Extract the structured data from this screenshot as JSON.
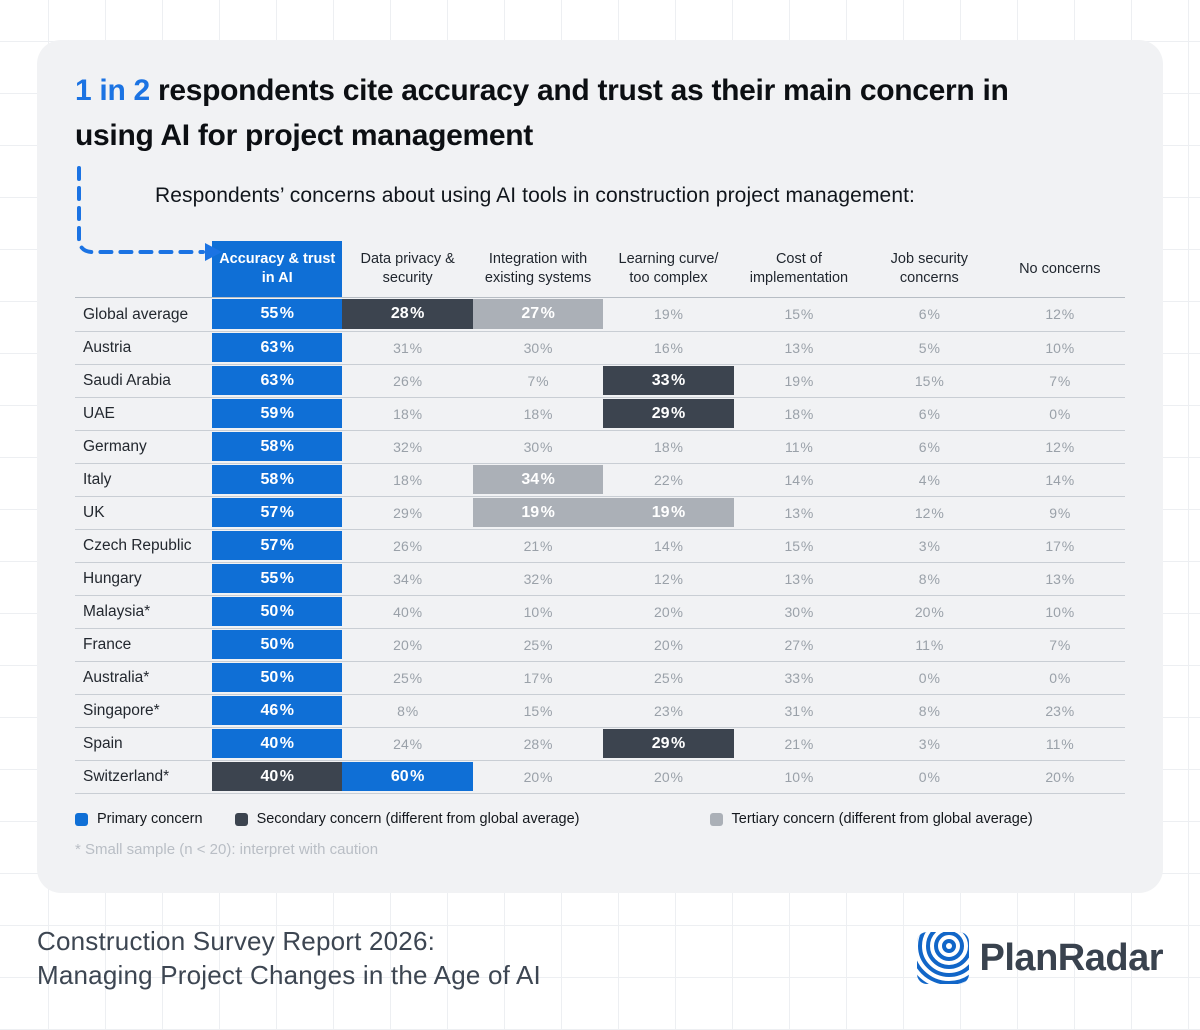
{
  "header": {
    "title_accent": "1 in 2",
    "title_rest": " respondents cite accuracy and trust as their main concern in using AI for project management",
    "subtitle": "Respondents’ concerns about using AI tools in construction project management:"
  },
  "chart_data": {
    "type": "table",
    "unit": "%",
    "columns": [
      "Accuracy & trust in AI",
      "Data privacy & security",
      "Integration with existing systems",
      "Learning curve/ too complex",
      "Cost of implementation",
      "Job security concerns",
      "No concerns"
    ],
    "rows": [
      {
        "label": "Global average",
        "values": [
          55,
          28,
          27,
          19,
          15,
          6,
          12
        ],
        "highlights": {
          "0": "primary",
          "1": "secondary",
          "2": "tertiary"
        }
      },
      {
        "label": "Austria",
        "values": [
          63,
          31,
          30,
          16,
          13,
          5,
          10
        ],
        "highlights": {
          "0": "primary"
        }
      },
      {
        "label": "Saudi Arabia",
        "values": [
          63,
          26,
          7,
          33,
          19,
          15,
          7
        ],
        "highlights": {
          "0": "primary",
          "3": "secondary"
        }
      },
      {
        "label": "UAE",
        "values": [
          59,
          18,
          18,
          29,
          18,
          6,
          0
        ],
        "highlights": {
          "0": "primary",
          "3": "secondary"
        }
      },
      {
        "label": "Germany",
        "values": [
          58,
          32,
          30,
          18,
          11,
          6,
          12
        ],
        "highlights": {
          "0": "primary"
        }
      },
      {
        "label": "Italy",
        "values": [
          58,
          18,
          34,
          22,
          14,
          4,
          14
        ],
        "highlights": {
          "0": "primary",
          "2": "tertiary"
        }
      },
      {
        "label": "UK",
        "values": [
          57,
          29,
          19,
          19,
          13,
          12,
          9
        ],
        "highlights": {
          "0": "primary",
          "2": "tertiary",
          "3": "tertiary"
        }
      },
      {
        "label": "Czech Republic",
        "values": [
          57,
          26,
          21,
          14,
          15,
          3,
          17
        ],
        "highlights": {
          "0": "primary"
        }
      },
      {
        "label": "Hungary",
        "values": [
          55,
          34,
          32,
          12,
          13,
          8,
          13
        ],
        "highlights": {
          "0": "primary"
        }
      },
      {
        "label": "Malaysia*",
        "values": [
          50,
          40,
          10,
          20,
          30,
          20,
          10
        ],
        "highlights": {
          "0": "primary"
        }
      },
      {
        "label": "France",
        "values": [
          50,
          20,
          25,
          20,
          27,
          11,
          7
        ],
        "highlights": {
          "0": "primary"
        }
      },
      {
        "label": "Australia*",
        "values": [
          50,
          25,
          17,
          25,
          33,
          0,
          0
        ],
        "highlights": {
          "0": "primary"
        }
      },
      {
        "label": "Singapore*",
        "values": [
          46,
          8,
          15,
          23,
          31,
          8,
          23
        ],
        "highlights": {
          "0": "primary"
        }
      },
      {
        "label": "Spain",
        "values": [
          40,
          24,
          28,
          29,
          21,
          3,
          11
        ],
        "highlights": {
          "0": "primary",
          "3": "secondary"
        }
      },
      {
        "label": "Switzerland*",
        "values": [
          40,
          60,
          20,
          20,
          10,
          0,
          20
        ],
        "highlights": {
          "0": "secondary",
          "1": "primary"
        }
      }
    ]
  },
  "legend": {
    "items": [
      {
        "level": "primary",
        "label": "Primary concern",
        "color": "#0f6fd6"
      },
      {
        "level": "secondary",
        "label": "Secondary concern (different from global average)",
        "color": "#3c444f"
      },
      {
        "level": "tertiary",
        "label": "Tertiary concern (different from global average)",
        "color": "#abb0b7"
      }
    ]
  },
  "footnote": "* Small sample (n < 20): interpret with caution",
  "footer": {
    "line1": "Construction Survey Report 2026:",
    "line2": "Managing Project Changes in the Age of AI",
    "brand": "PlanRadar"
  },
  "colors": {
    "primary": "#0f6fd6",
    "secondary": "#3c444f",
    "tertiary": "#abb0b7",
    "title_accent": "#1b73e3",
    "logo_blue": "#1166c8",
    "card_background": "#f1f2f4"
  }
}
